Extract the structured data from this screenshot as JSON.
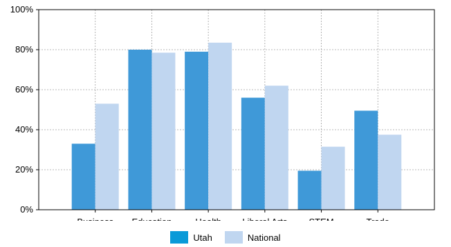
{
  "chart_data": {
    "type": "bar",
    "categories": [
      "Business",
      "Education",
      "Health",
      "Liberal Arts",
      "STEM",
      "Trade"
    ],
    "series": [
      {
        "name": "Utah",
        "values": [
          33,
          80,
          79,
          56,
          19.5,
          49.5
        ],
        "color": "#3f99d8"
      },
      {
        "name": "National",
        "values": [
          53,
          78.5,
          83.5,
          62,
          31.5,
          37.5
        ],
        "color": "#c0d6f0"
      }
    ],
    "ylim": [
      0,
      100
    ],
    "yticks": [
      0,
      20,
      40,
      60,
      80,
      100
    ],
    "ytick_format": "percent",
    "grid": true,
    "legend_position": "bottom-center",
    "title": "",
    "xlabel": "",
    "ylabel": ""
  },
  "legend": {
    "utah_label": "Utah",
    "utah_color": "#0a9ad8",
    "national_label": "National",
    "national_color": "#c0d6f0"
  }
}
